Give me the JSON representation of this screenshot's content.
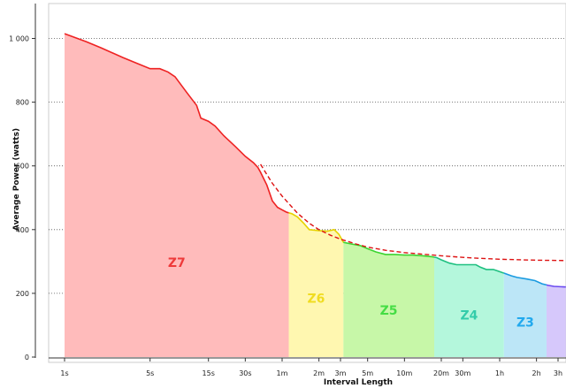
{
  "chart_data": {
    "type": "area",
    "xlabel": "Interval Length",
    "ylabel": "Average Power (watts)",
    "x_scale": "log",
    "ylim": [
      0,
      1100
    ],
    "grid": true,
    "x_ticks": [
      {
        "label": "1s",
        "seconds": 1
      },
      {
        "label": "5s",
        "seconds": 5
      },
      {
        "label": "15s",
        "seconds": 15
      },
      {
        "label": "30s",
        "seconds": 30
      },
      {
        "label": "1m",
        "seconds": 60
      },
      {
        "label": "2m",
        "seconds": 120
      },
      {
        "label": "3m",
        "seconds": 180
      },
      {
        "label": "5m",
        "seconds": 300
      },
      {
        "label": "10m",
        "seconds": 600
      },
      {
        "label": "20m",
        "seconds": 1200
      },
      {
        "label": "30m",
        "seconds": 1800
      },
      {
        "label": "1h",
        "seconds": 3600
      },
      {
        "label": "2h",
        "seconds": 7200
      },
      {
        "label": "3h",
        "seconds": 10800
      }
    ],
    "y_ticks": [
      {
        "label": "0",
        "value": 0
      },
      {
        "label": "200",
        "value": 200
      },
      {
        "label": "400",
        "value": 400
      },
      {
        "label": "600",
        "value": 600
      },
      {
        "label": "800",
        "value": 800
      },
      {
        "label": "1 000",
        "value": 1000
      }
    ],
    "power_curve": [
      {
        "x": 1,
        "y": 1015
      },
      {
        "x": 1.5,
        "y": 990
      },
      {
        "x": 2,
        "y": 970
      },
      {
        "x": 3,
        "y": 940
      },
      {
        "x": 4,
        "y": 920
      },
      {
        "x": 5,
        "y": 905
      },
      {
        "x": 6,
        "y": 905
      },
      {
        "x": 7,
        "y": 895
      },
      {
        "x": 8,
        "y": 880
      },
      {
        "x": 10,
        "y": 830
      },
      {
        "x": 12,
        "y": 790
      },
      {
        "x": 13,
        "y": 750
      },
      {
        "x": 15,
        "y": 740
      },
      {
        "x": 17,
        "y": 725
      },
      {
        "x": 20,
        "y": 695
      },
      {
        "x": 25,
        "y": 660
      },
      {
        "x": 30,
        "y": 630
      },
      {
        "x": 35,
        "y": 610
      },
      {
        "x": 38,
        "y": 595
      },
      {
        "x": 40,
        "y": 580
      },
      {
        "x": 45,
        "y": 540
      },
      {
        "x": 50,
        "y": 490
      },
      {
        "x": 55,
        "y": 470
      },
      {
        "x": 60,
        "y": 462
      },
      {
        "x": 65,
        "y": 455
      },
      {
        "x": 72,
        "y": 450
      },
      {
        "x": 80,
        "y": 440
      },
      {
        "x": 90,
        "y": 420
      },
      {
        "x": 100,
        "y": 400
      },
      {
        "x": 120,
        "y": 397
      },
      {
        "x": 140,
        "y": 395
      },
      {
        "x": 160,
        "y": 400
      },
      {
        "x": 175,
        "y": 385
      },
      {
        "x": 190,
        "y": 360
      },
      {
        "x": 220,
        "y": 355
      },
      {
        "x": 260,
        "y": 350
      },
      {
        "x": 300,
        "y": 340
      },
      {
        "x": 350,
        "y": 330
      },
      {
        "x": 420,
        "y": 322
      },
      {
        "x": 500,
        "y": 322
      },
      {
        "x": 600,
        "y": 320
      },
      {
        "x": 700,
        "y": 320
      },
      {
        "x": 850,
        "y": 318
      },
      {
        "x": 1000,
        "y": 315
      },
      {
        "x": 1100,
        "y": 312
      },
      {
        "x": 1200,
        "y": 305
      },
      {
        "x": 1400,
        "y": 295
      },
      {
        "x": 1600,
        "y": 290
      },
      {
        "x": 2000,
        "y": 290
      },
      {
        "x": 2300,
        "y": 290
      },
      {
        "x": 2500,
        "y": 282
      },
      {
        "x": 2800,
        "y": 275
      },
      {
        "x": 3200,
        "y": 275
      },
      {
        "x": 3500,
        "y": 270
      },
      {
        "x": 3800,
        "y": 265
      },
      {
        "x": 4500,
        "y": 255
      },
      {
        "x": 5000,
        "y": 250
      },
      {
        "x": 6000,
        "y": 245
      },
      {
        "x": 7000,
        "y": 240
      },
      {
        "x": 8000,
        "y": 230
      },
      {
        "x": 9000,
        "y": 225
      },
      {
        "x": 10000,
        "y": 222
      },
      {
        "x": 12500,
        "y": 220
      }
    ],
    "model_curve": [
      {
        "x": 40,
        "y": 605
      },
      {
        "x": 50,
        "y": 545
      },
      {
        "x": 60,
        "y": 505
      },
      {
        "x": 80,
        "y": 452
      },
      {
        "x": 100,
        "y": 420
      },
      {
        "x": 120,
        "y": 400
      },
      {
        "x": 150,
        "y": 382
      },
      {
        "x": 180,
        "y": 370
      },
      {
        "x": 240,
        "y": 355
      },
      {
        "x": 300,
        "y": 345
      },
      {
        "x": 420,
        "y": 335
      },
      {
        "x": 600,
        "y": 328
      },
      {
        "x": 900,
        "y": 322
      },
      {
        "x": 1200,
        "y": 318
      },
      {
        "x": 1800,
        "y": 313
      },
      {
        "x": 2400,
        "y": 310
      },
      {
        "x": 3600,
        "y": 307
      },
      {
        "x": 7200,
        "y": 304
      },
      {
        "x": 12500,
        "y": 303
      }
    ],
    "zones": [
      {
        "label": "Z7",
        "x_start": 1,
        "x_end": 68,
        "color": "#ffbbbb",
        "line": "#ee2222",
        "text": "#ee3a3a"
      },
      {
        "label": "Z6",
        "x_start": 68,
        "x_end": 190,
        "color": "#fff7b0",
        "line": "#e6d200",
        "text": "#f0dc20"
      },
      {
        "label": "Z5",
        "x_start": 190,
        "x_end": 1050,
        "color": "#c7f7a8",
        "line": "#3bd430",
        "text": "#44dd44"
      },
      {
        "label": "Z4",
        "x_start": 1050,
        "x_end": 3900,
        "color": "#b4f7dc",
        "line": "#1ec080",
        "text": "#33ccaa"
      },
      {
        "label": "Z3",
        "x_start": 3900,
        "x_end": 8700,
        "color": "#bce6f7",
        "line": "#1a9be0",
        "text": "#22a9ee"
      },
      {
        "label": "",
        "x_start": 8700,
        "x_end": 12500,
        "color": "#d6c8fb",
        "line": "#6a4af0",
        "text": "#7755ee"
      }
    ],
    "colors": {
      "model": "#dd1111",
      "grid": "#555555",
      "axis": "#333333",
      "frame": "#cccccc"
    }
  }
}
